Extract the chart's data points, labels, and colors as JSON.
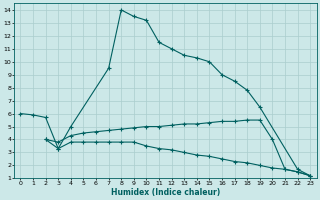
{
  "xlabel": "Humidex (Indice chaleur)",
  "bg_color": "#cce8e8",
  "grid_color": "#aacece",
  "line_color": "#006060",
  "xlim": [
    -0.5,
    23.5
  ],
  "ylim": [
    1,
    14.5
  ],
  "xticks": [
    0,
    1,
    2,
    3,
    4,
    5,
    6,
    7,
    8,
    9,
    10,
    11,
    12,
    13,
    14,
    15,
    16,
    17,
    18,
    19,
    20,
    21,
    22,
    23
  ],
  "yticks": [
    1,
    2,
    3,
    4,
    5,
    6,
    7,
    8,
    9,
    10,
    11,
    12,
    13,
    14
  ],
  "line1_x": [
    0,
    1,
    2,
    3,
    4,
    7,
    8,
    9,
    10,
    11,
    12,
    13,
    14,
    15,
    16,
    17,
    18,
    19,
    22,
    23
  ],
  "line1_y": [
    6,
    5.9,
    5.7,
    3.3,
    5.0,
    9.5,
    14,
    13.5,
    13.2,
    11.5,
    11.0,
    10.5,
    10.3,
    10.0,
    9.0,
    8.5,
    7.8,
    6.5,
    1.7,
    1.2
  ],
  "line2_x": [
    2,
    3,
    4,
    5,
    6,
    7,
    8,
    9,
    10,
    11,
    12,
    13,
    14,
    15,
    16,
    17,
    18,
    19,
    20,
    21,
    22,
    23
  ],
  "line2_y": [
    4.0,
    3.8,
    4.3,
    4.5,
    4.6,
    4.7,
    4.8,
    4.9,
    5.0,
    5.0,
    5.1,
    5.2,
    5.2,
    5.3,
    5.4,
    5.4,
    5.5,
    5.5,
    4.0,
    1.7,
    1.5,
    1.2
  ],
  "line3_x": [
    2,
    3,
    4,
    5,
    6,
    7,
    8,
    9,
    10,
    11,
    12,
    13,
    14,
    15,
    16,
    17,
    18,
    19,
    20,
    21,
    22,
    23
  ],
  "line3_y": [
    4.0,
    3.3,
    3.8,
    3.8,
    3.8,
    3.8,
    3.8,
    3.8,
    3.5,
    3.3,
    3.2,
    3.0,
    2.8,
    2.7,
    2.5,
    2.3,
    2.2,
    2.0,
    1.8,
    1.7,
    1.5,
    1.2
  ]
}
